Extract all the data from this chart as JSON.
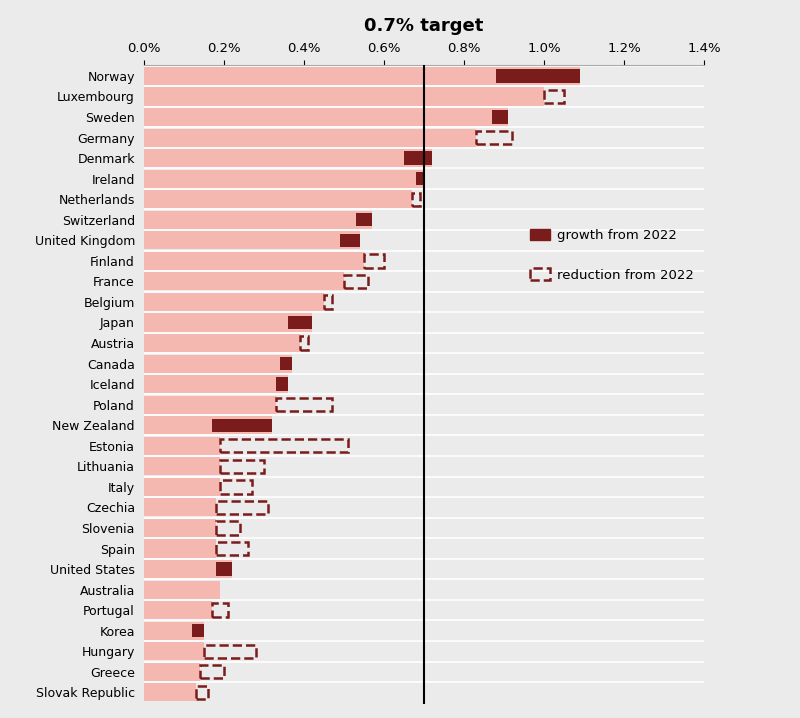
{
  "title": "0.7% target",
  "background_color": "#ebebeb",
  "bar_bg_color": "#f5b8b0",
  "growth_color": "#7b1c1c",
  "vline_x": 0.7,
  "xlim": [
    0.0,
    1.4
  ],
  "xticks": [
    0.0,
    0.2,
    0.4,
    0.6,
    0.8,
    1.0,
    1.2,
    1.4
  ],
  "countries": [
    "Norway",
    "Luxembourg",
    "Sweden",
    "Germany",
    "Denmark",
    "Ireland",
    "Netherlands",
    "Switzerland",
    "United Kingdom",
    "Finland",
    "France",
    "Belgium",
    "Japan",
    "Austria",
    "Canada",
    "Iceland",
    "Poland",
    "New Zealand",
    "Estonia",
    "Lithuania",
    "Italy",
    "Czechia",
    "Slovenia",
    "Spain",
    "United States",
    "Australia",
    "Portugal",
    "Korea",
    "Hungary",
    "Greece",
    "Slovak Republic"
  ],
  "current_values": [
    1.09,
    1.0,
    0.91,
    0.83,
    0.72,
    0.7,
    0.67,
    0.57,
    0.54,
    0.55,
    0.5,
    0.45,
    0.42,
    0.39,
    0.37,
    0.36,
    0.33,
    0.32,
    0.19,
    0.19,
    0.19,
    0.18,
    0.18,
    0.18,
    0.22,
    0.19,
    0.17,
    0.15,
    0.15,
    0.14,
    0.13
  ],
  "change_values": [
    0.21,
    -0.05,
    0.04,
    -0.09,
    0.07,
    0.02,
    -0.02,
    0.04,
    0.05,
    -0.05,
    -0.06,
    -0.02,
    0.06,
    -0.02,
    0.03,
    0.03,
    -0.14,
    0.15,
    -0.32,
    -0.11,
    -0.08,
    -0.13,
    -0.06,
    -0.08,
    0.04,
    0.0,
    -0.04,
    0.03,
    -0.13,
    -0.06,
    -0.03
  ],
  "legend_growth_label": "growth from 2022",
  "legend_reduction_label": "reduction from 2022",
  "row_colors": [
    "#f5b8b0",
    "#f5b8b0"
  ]
}
